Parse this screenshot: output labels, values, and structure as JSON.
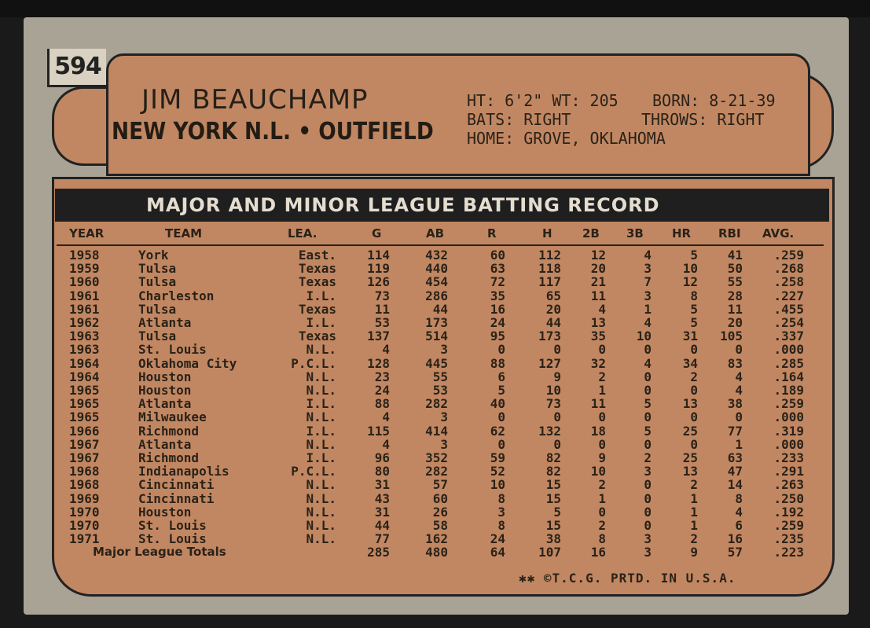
{
  "card_number": "594",
  "player": {
    "name": "JIM BEAUCHAMP",
    "team_line": "NEW YORK N.L. • OUTFIELD",
    "ht_wt": "HT: 6'2\" WT: 205",
    "born": "BORN: 8-21-39",
    "bats": "BATS: RIGHT",
    "throws": "THROWS: RIGHT",
    "home": "HOME: GROVE, OKLAHOMA"
  },
  "banner": "MAJOR AND MINOR LEAGUE BATTING RECORD",
  "headers": [
    "YEAR",
    "TEAM",
    "LEA.",
    "G",
    "AB",
    "R",
    "H",
    "2B",
    "3B",
    "HR",
    "RBI",
    "AVG."
  ],
  "rows": [
    [
      "1958",
      "York",
      "East.",
      "114",
      "432",
      "60",
      "112",
      "12",
      "4",
      "5",
      "41",
      ".259"
    ],
    [
      "1959",
      "Tulsa",
      "Texas",
      "119",
      "440",
      "63",
      "118",
      "20",
      "3",
      "10",
      "50",
      ".268"
    ],
    [
      "1960",
      "Tulsa",
      "Texas",
      "126",
      "454",
      "72",
      "117",
      "21",
      "7",
      "12",
      "55",
      ".258"
    ],
    [
      "1961",
      "Charleston",
      "I.L.",
      "73",
      "286",
      "35",
      "65",
      "11",
      "3",
      "8",
      "28",
      ".227"
    ],
    [
      "1961",
      "Tulsa",
      "Texas",
      "11",
      "44",
      "16",
      "20",
      "4",
      "1",
      "5",
      "11",
      ".455"
    ],
    [
      "1962",
      "Atlanta",
      "I.L.",
      "53",
      "173",
      "24",
      "44",
      "13",
      "4",
      "5",
      "20",
      ".254"
    ],
    [
      "1963",
      "Tulsa",
      "Texas",
      "137",
      "514",
      "95",
      "173",
      "35",
      "10",
      "31",
      "105",
      ".337"
    ],
    [
      "1963",
      "St. Louis",
      "N.L.",
      "4",
      "3",
      "0",
      "0",
      "0",
      "0",
      "0",
      "0",
      ".000"
    ],
    [
      "1964",
      "Oklahoma City",
      "P.C.L.",
      "128",
      "445",
      "88",
      "127",
      "32",
      "4",
      "34",
      "83",
      ".285"
    ],
    [
      "1964",
      "Houston",
      "N.L.",
      "23",
      "55",
      "6",
      "9",
      "2",
      "0",
      "2",
      "4",
      ".164"
    ],
    [
      "1965",
      "Houston",
      "N.L.",
      "24",
      "53",
      "5",
      "10",
      "1",
      "0",
      "0",
      "4",
      ".189"
    ],
    [
      "1965",
      "Atlanta",
      "I.L.",
      "88",
      "282",
      "40",
      "73",
      "11",
      "5",
      "13",
      "38",
      ".259"
    ],
    [
      "1965",
      "Milwaukee",
      "N.L.",
      "4",
      "3",
      "0",
      "0",
      "0",
      "0",
      "0",
      "0",
      ".000"
    ],
    [
      "1966",
      "Richmond",
      "I.L.",
      "115",
      "414",
      "62",
      "132",
      "18",
      "5",
      "25",
      "77",
      ".319"
    ],
    [
      "1967",
      "Atlanta",
      "N.L.",
      "4",
      "3",
      "0",
      "0",
      "0",
      "0",
      "0",
      "1",
      ".000"
    ],
    [
      "1967",
      "Richmond",
      "I.L.",
      "96",
      "352",
      "59",
      "82",
      "9",
      "2",
      "25",
      "63",
      ".233"
    ],
    [
      "1968",
      "Indianapolis",
      "P.C.L.",
      "80",
      "282",
      "52",
      "82",
      "10",
      "3",
      "13",
      "47",
      ".291"
    ],
    [
      "1968",
      "Cincinnati",
      "N.L.",
      "31",
      "57",
      "10",
      "15",
      "2",
      "0",
      "2",
      "14",
      ".263"
    ],
    [
      "1969",
      "Cincinnati",
      "N.L.",
      "43",
      "60",
      "8",
      "15",
      "1",
      "0",
      "1",
      "8",
      ".250"
    ],
    [
      "1970",
      "Houston",
      "N.L.",
      "31",
      "26",
      "3",
      "5",
      "0",
      "0",
      "1",
      "4",
      ".192"
    ],
    [
      "1970",
      "St. Louis",
      "N.L.",
      "44",
      "58",
      "8",
      "15",
      "2",
      "0",
      "1",
      "6",
      ".259"
    ],
    [
      "1971",
      "St. Louis",
      "N.L.",
      "77",
      "162",
      "24",
      "38",
      "8",
      "3",
      "2",
      "16",
      ".235"
    ]
  ],
  "totals": [
    "Major League Totals",
    "285",
    "480",
    "64",
    "107",
    "16",
    "3",
    "9",
    "57",
    ".223"
  ],
  "footer": "✱✱ ©T.C.G. PRTD. IN U.S.A."
}
